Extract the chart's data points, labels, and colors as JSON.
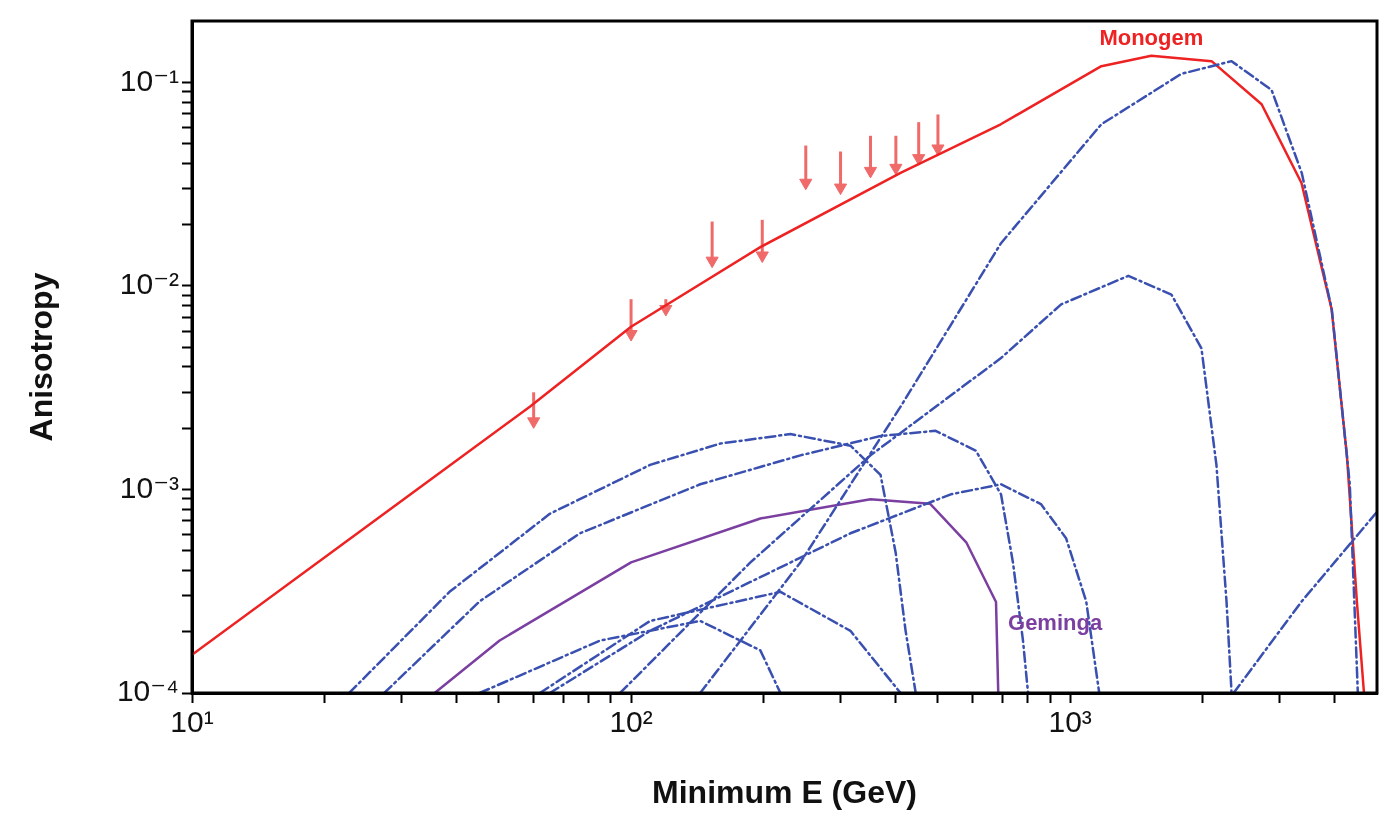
{
  "chart_data": {
    "type": "line",
    "xlabel": "Minimum E (GeV)",
    "ylabel": "Anisotropy",
    "log": "xy",
    "xlim": [
      10,
      5000
    ],
    "ylim": [
      0.0001,
      0.2
    ],
    "xticks": [
      {
        "value": 10,
        "label": "10¹"
      },
      {
        "value": 20,
        "label": null
      },
      {
        "value": 30,
        "label": null
      },
      {
        "value": 40,
        "label": null
      },
      {
        "value": 50,
        "label": null
      },
      {
        "value": 60,
        "label": null
      },
      {
        "value": 70,
        "label": null
      },
      {
        "value": 80,
        "label": null
      },
      {
        "value": 90,
        "label": null
      },
      {
        "value": 100,
        "label": "10²"
      },
      {
        "value": 200,
        "label": null
      },
      {
        "value": 300,
        "label": null
      },
      {
        "value": 400,
        "label": null
      },
      {
        "value": 500,
        "label": null
      },
      {
        "value": 600,
        "label": null
      },
      {
        "value": 700,
        "label": null
      },
      {
        "value": 800,
        "label": null
      },
      {
        "value": 900,
        "label": null
      },
      {
        "value": 1000,
        "label": "10³"
      },
      {
        "value": 2000,
        "label": null
      },
      {
        "value": 3000,
        "label": null
      },
      {
        "value": 4000,
        "label": null
      }
    ],
    "yticks": [
      {
        "value": 0.0001,
        "label": "10⁻⁴"
      },
      {
        "value": 0.0002,
        "label": null
      },
      {
        "value": 0.0003,
        "label": null
      },
      {
        "value": 0.0004,
        "label": null
      },
      {
        "value": 0.0005,
        "label": null
      },
      {
        "value": 0.0006,
        "label": null
      },
      {
        "value": 0.0007,
        "label": null
      },
      {
        "value": 0.0008,
        "label": null
      },
      {
        "value": 0.0009,
        "label": null
      },
      {
        "value": 0.001,
        "label": "10⁻³"
      },
      {
        "value": 0.002,
        "label": null
      },
      {
        "value": 0.003,
        "label": null
      },
      {
        "value": 0.004,
        "label": null
      },
      {
        "value": 0.005,
        "label": null
      },
      {
        "value": 0.006,
        "label": null
      },
      {
        "value": 0.007,
        "label": null
      },
      {
        "value": 0.008,
        "label": null
      },
      {
        "value": 0.009,
        "label": null
      },
      {
        "value": 0.01,
        "label": "10⁻²"
      },
      {
        "value": 0.02,
        "label": null
      },
      {
        "value": 0.03,
        "label": null
      },
      {
        "value": 0.04,
        "label": null
      },
      {
        "value": 0.05,
        "label": null
      },
      {
        "value": 0.06,
        "label": null
      },
      {
        "value": 0.07,
        "label": null
      },
      {
        "value": 0.08,
        "label": null
      },
      {
        "value": 0.09,
        "label": null
      },
      {
        "value": 0.1,
        "label": "10⁻¹"
      }
    ],
    "grid": false,
    "legend": false,
    "marker": "none",
    "line_style": "solid",
    "series": [
      {
        "type": "line",
        "line_style": "dashed",
        "color": "#3a50b0",
        "x": [
          143.7,
          243.1,
          411,
          696,
          1178,
          1792,
          2332,
          2877,
          3369,
          3944,
          4335,
          4522
        ],
        "values": [
          0.0001,
          0.000438,
          0.00255,
          0.0162,
          0.0622,
          0.11,
          0.127,
          0.0916,
          0.0359,
          0.00768,
          0.00106,
          0.0001
        ]
      },
      {
        "type": "line",
        "line_style": "dashed",
        "color": "#3a50b0",
        "x": [
          94.4,
          187,
          351,
          696,
          954,
          1357,
          1701,
          1991,
          2154,
          2271,
          2332
        ],
        "values": [
          0.0001,
          0.000438,
          0.00147,
          0.00442,
          0.00811,
          0.0112,
          0.00906,
          0.00494,
          0.00132,
          0.000282,
          0.0001
        ]
      },
      {
        "type": "line",
        "line_style": "dashed",
        "color": "#3a50b0",
        "x": [
          2357,
          3369,
          5000
        ],
        "values": [
          0.0001,
          0.000282,
          0.000776
        ]
      },
      {
        "type": "line",
        "line_style": "dashed",
        "color": "#3a50b0",
        "x": [
          22.8,
          38.6,
          65.3,
          110.5,
          159.7,
          230.7,
          316,
          370,
          400.6,
          422,
          445
        ],
        "values": [
          0.0001,
          0.000314,
          0.000759,
          0.00132,
          0.00168,
          0.00187,
          0.00164,
          0.00118,
          0.000489,
          0.000202,
          0.0001
        ]
      },
      {
        "type": "line",
        "line_style": "dashed",
        "color": "#3a50b0",
        "x": [
          27.4,
          45.2,
          76.5,
          143.7,
          243.1,
          370,
          494,
          610,
          696,
          741,
          781,
          802
        ],
        "values": [
          0.0001,
          0.000282,
          0.000609,
          0.00106,
          0.00147,
          0.00183,
          0.00194,
          0.00155,
          0.000946,
          0.000438,
          0.000181,
          0.0001
        ]
      },
      {
        "type": "line",
        "line_style": "dashed",
        "color": "#3a50b0",
        "x": [
          65.3,
          110.5,
          187,
          316,
          535,
          696,
          858,
          979,
          1088,
          1165
        ],
        "values": [
          0.0001,
          0.000202,
          0.000351,
          0.000609,
          0.000946,
          0.00106,
          0.000847,
          0.000576,
          0.000282,
          0.0001
        ]
      },
      {
        "type": "line",
        "line_style": "dashed",
        "color": "#3a50b0",
        "x": [
          62,
          110.5,
          218.9,
          316,
          411
        ],
        "values": [
          0.0001,
          0.000226,
          0.000314,
          0.000202,
          0.0001
        ]
      },
      {
        "type": "line",
        "line_style": "dashed",
        "color": "#3a50b0",
        "x": [
          45.2,
          85,
          143.7,
          197,
          218.9
        ],
        "values": [
          0.0001,
          0.000181,
          0.000226,
          0.000162,
          0.0001
        ]
      },
      {
        "name": "Geminga",
        "color": "#7a3fa0",
        "x": [
          35.7,
          50.2,
          100,
          197,
          351,
          480,
          580,
          678,
          686
        ],
        "values": [
          0.0001,
          0.000181,
          0.000438,
          0.00072,
          0.000895,
          0.00085,
          0.00055,
          0.00028,
          0.0001
        ]
      },
      {
        "name": "Monogem",
        "color": "#ee2222",
        "x": [
          10,
          58.8,
          100,
          197,
          411,
          695,
          1178,
          1531,
          2100,
          2730,
          3365,
          3940,
          4270,
          4500,
          4670
        ],
        "values": [
          0.000154,
          0.00255,
          0.0063,
          0.0155,
          0.0359,
          0.0622,
          0.12,
          0.135,
          0.127,
          0.078,
          0.032,
          0.0077,
          0.00147,
          0.00028,
          0.0001
        ]
      },
      {
        "type": "scatter",
        "marker": "triangle",
        "color": "#f06a6a",
        "x": [
          60,
          100,
          120,
          153,
          199,
          250,
          300,
          351,
          401,
          452,
          500
        ],
        "values": [
          0.00216,
          0.0058,
          0.0077,
          0.0133,
          0.0141,
          0.0321,
          0.0304,
          0.0367,
          0.038,
          0.0424,
          0.0473
        ],
        "errors": [
          [
            0.00216,
            0.003
          ],
          [
            0.0058,
            0.0086
          ],
          [
            0.0077,
            0.0086
          ],
          [
            0.0133,
            0.0207
          ],
          [
            0.0141,
            0.0211
          ],
          [
            0.0321,
            0.0489
          ],
          [
            0.0304,
            0.0457
          ],
          [
            0.0367,
            0.0546
          ],
          [
            0.038,
            0.0546
          ],
          [
            0.0424,
            0.0637
          ],
          [
            0.0473,
            0.0695
          ]
        ]
      }
    ]
  }
}
